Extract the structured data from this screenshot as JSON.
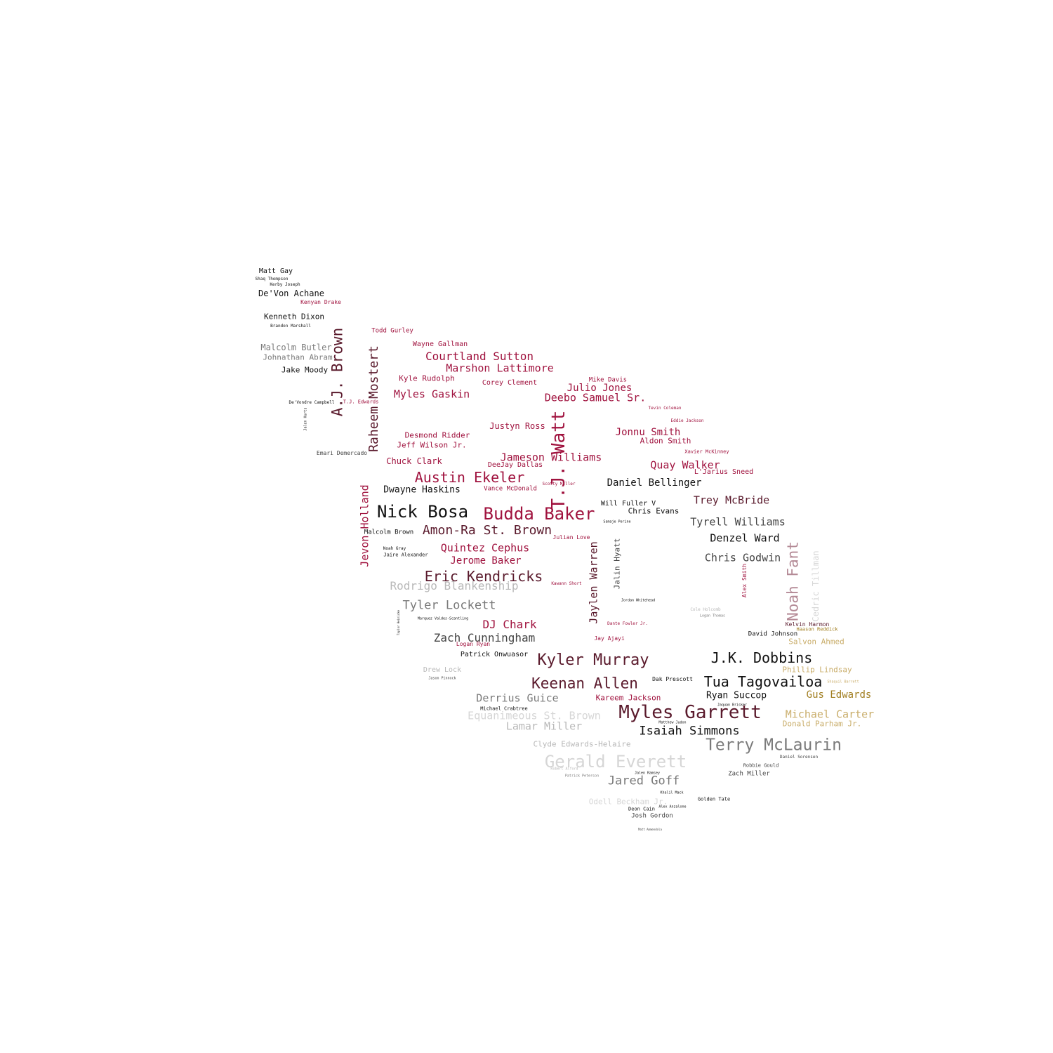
{
  "palette": {
    "crimson": "#a0123e",
    "maroon": "#5a1a2c",
    "black": "#111111",
    "dark_gray": "#444444",
    "gray": "#7a7a7a",
    "light_gray": "#b8b8b8",
    "pale_gray": "#d6d6d6",
    "mauve": "#b48a96",
    "gold": "#a07d1e",
    "tan": "#c9ad6a"
  },
  "words": [
    {
      "text": "Matt Gay",
      "size": 10,
      "color": "black"
    },
    {
      "text": "Shaq Thompson",
      "size": 6,
      "color": "black"
    },
    {
      "text": "Kerby Joseph",
      "size": 6,
      "color": "black"
    },
    {
      "text": "De'Von Achane",
      "size": 12,
      "color": "black"
    },
    {
      "text": "Kenyan Drake",
      "size": 8,
      "color": "crimson"
    },
    {
      "text": "Kenneth Dixon",
      "size": 11,
      "color": "black"
    },
    {
      "text": "Brandon Marshall",
      "size": 6,
      "color": "black"
    },
    {
      "text": "Malcolm Butler",
      "size": 12,
      "color": "gray"
    },
    {
      "text": "Johnathan Abram",
      "size": 11,
      "color": "gray"
    },
    {
      "text": "Jake Moody",
      "size": 11,
      "color": "black"
    },
    {
      "text": "A.J. Brown",
      "size": 21,
      "color": "maroon",
      "vertical": true
    },
    {
      "text": "Raheem Mostert",
      "size": 18,
      "color": "maroon",
      "vertical": true
    },
    {
      "text": "Todd Gurley",
      "size": 9,
      "color": "crimson"
    },
    {
      "text": "Wayne Gallman",
      "size": 10,
      "color": "crimson"
    },
    {
      "text": "Courtland Sutton",
      "size": 16,
      "color": "crimson"
    },
    {
      "text": "Marshon Lattimore",
      "size": 15,
      "color": "crimson"
    },
    {
      "text": "Kyle Rudolph",
      "size": 11,
      "color": "crimson"
    },
    {
      "text": "Corey Clement",
      "size": 10,
      "color": "crimson"
    },
    {
      "text": "Myles Gaskin",
      "size": 15,
      "color": "crimson"
    },
    {
      "text": "Mike Davis",
      "size": 9,
      "color": "crimson"
    },
    {
      "text": "Julio Jones",
      "size": 14,
      "color": "crimson"
    },
    {
      "text": "Deebo Samuel Sr.",
      "size": 15,
      "color": "crimson"
    },
    {
      "text": "De'Vondre Campbell",
      "size": 6,
      "color": "black"
    },
    {
      "text": "T.J. Edwards",
      "size": 7,
      "color": "crimson"
    },
    {
      "text": "Jalen Hurts",
      "size": 5,
      "color": "black",
      "vertical": true
    },
    {
      "text": "Tevin Coleman",
      "size": 6,
      "color": "crimson"
    },
    {
      "text": "Eddie Jackson",
      "size": 6,
      "color": "crimson"
    },
    {
      "text": "Justyn Ross",
      "size": 12,
      "color": "crimson"
    },
    {
      "text": "Jonnu Smith",
      "size": 14,
      "color": "crimson"
    },
    {
      "text": "Desmond Ridder",
      "size": 11,
      "color": "crimson"
    },
    {
      "text": "Jeff Wilson Jr.",
      "size": 11,
      "color": "crimson"
    },
    {
      "text": "Aldon Smith",
      "size": 11,
      "color": "crimson"
    },
    {
      "text": "T.J. Watt",
      "size": 26,
      "color": "crimson",
      "vertical": true
    },
    {
      "text": "Emari Demercado",
      "size": 8,
      "color": "dark_gray"
    },
    {
      "text": "Chuck Clark",
      "size": 12,
      "color": "crimson"
    },
    {
      "text": "Jameson Williams",
      "size": 15,
      "color": "crimson"
    },
    {
      "text": "Xavier McKinney",
      "size": 7,
      "color": "crimson"
    },
    {
      "text": "DeeJay Dallas",
      "size": 10,
      "color": "crimson"
    },
    {
      "text": "Quay Walker",
      "size": 15,
      "color": "crimson"
    },
    {
      "text": "L'Jarius Sneed",
      "size": 10,
      "color": "crimson"
    },
    {
      "text": "Austin Ekeler",
      "size": 20,
      "color": "crimson"
    },
    {
      "text": "Dwayne Haskins",
      "size": 13,
      "color": "black"
    },
    {
      "text": "Vance McDonald",
      "size": 9,
      "color": "crimson"
    },
    {
      "text": "Scotty Miller",
      "size": 6,
      "color": "crimson"
    },
    {
      "text": "Daniel Bellinger",
      "size": 14,
      "color": "black"
    },
    {
      "text": "Jevon Holland",
      "size": 15,
      "color": "crimson",
      "vertical": true
    },
    {
      "text": "Nick Bosa",
      "size": 24,
      "color": "black"
    },
    {
      "text": "Budda Baker",
      "size": 24,
      "color": "crimson"
    },
    {
      "text": "Will Fuller V",
      "size": 10,
      "color": "black"
    },
    {
      "text": "Chris Evans",
      "size": 11,
      "color": "black"
    },
    {
      "text": "Trey McBride",
      "size": 15,
      "color": "maroon"
    },
    {
      "text": "Malcolm Brown",
      "size": 9,
      "color": "black"
    },
    {
      "text": "Amon-Ra St. Brown",
      "size": 18,
      "color": "maroon"
    },
    {
      "text": "Samaje Perine",
      "size": 5,
      "color": "black"
    },
    {
      "text": "Tyrell Williams",
      "size": 15,
      "color": "dark_gray"
    },
    {
      "text": "Julian Love",
      "size": 8,
      "color": "crimson"
    },
    {
      "text": "Noah Gray",
      "size": 6,
      "color": "black"
    },
    {
      "text": "Jaire Alexander",
      "size": 7,
      "color": "black"
    },
    {
      "text": "Quintez Cephus",
      "size": 15,
      "color": "crimson"
    },
    {
      "text": "Jerome Baker",
      "size": 14,
      "color": "crimson"
    },
    {
      "text": "Jaylen Warren",
      "size": 15,
      "color": "maroon",
      "vertical": true
    },
    {
      "text": "Jalin Hyatt",
      "size": 11,
      "color": "dark_gray",
      "vertical": true
    },
    {
      "text": "Denzel Ward",
      "size": 15,
      "color": "black"
    },
    {
      "text": "Chris Godwin",
      "size": 15,
      "color": "dark_gray"
    },
    {
      "text": "Alex Smith",
      "size": 8,
      "color": "crimson",
      "vertical": true
    },
    {
      "text": "Noah Fant",
      "size": 21,
      "color": "mauve",
      "vertical": true
    },
    {
      "text": "Cedric Tillman",
      "size": 12,
      "color": "pale_gray",
      "vertical": true
    },
    {
      "text": "Eric Kendricks",
      "size": 20,
      "color": "maroon"
    },
    {
      "text": "Kawann Short",
      "size": 6,
      "color": "crimson"
    },
    {
      "text": "Rodrigo Blankenship",
      "size": 16,
      "color": "light_gray"
    },
    {
      "text": "Jordan Whitehead",
      "size": 5,
      "color": "black"
    },
    {
      "text": "Tyler Lockett",
      "size": 17,
      "color": "gray"
    },
    {
      "text": "Cole Holcomb",
      "size": 6,
      "color": "light_gray"
    },
    {
      "text": "Logan Thomas",
      "size": 5,
      "color": "gray"
    },
    {
      "text": "Marquez Valdes-Scantling",
      "size": 5,
      "color": "black"
    },
    {
      "text": "Taylor Heinicke",
      "size": 4,
      "color": "black",
      "vertical": true
    },
    {
      "text": "DJ Chark",
      "size": 16,
      "color": "crimson"
    },
    {
      "text": "Dante Fowler Jr.",
      "size": 6,
      "color": "crimson"
    },
    {
      "text": "Kelvin Harmon",
      "size": 8,
      "color": "maroon"
    },
    {
      "text": "Haason Reddick",
      "size": 7,
      "color": "gold"
    },
    {
      "text": "David Johnson",
      "size": 9,
      "color": "black"
    },
    {
      "text": "Salvon Ahmed",
      "size": 11,
      "color": "tan"
    },
    {
      "text": "Zach Cunningham",
      "size": 16,
      "color": "dark_gray"
    },
    {
      "text": "Logan Ryan",
      "size": 8,
      "color": "crimson"
    },
    {
      "text": "Jay Ajayi",
      "size": 8,
      "color": "crimson"
    },
    {
      "text": "Patrick Onwuasor",
      "size": 10,
      "color": "black"
    },
    {
      "text": "Kyler Murray",
      "size": 22,
      "color": "maroon"
    },
    {
      "text": "J.K. Dobbins",
      "size": 20,
      "color": "black"
    },
    {
      "text": "Drew Lock",
      "size": 10,
      "color": "light_gray"
    },
    {
      "text": "Jason Pinnock",
      "size": 5,
      "color": "dark_gray"
    },
    {
      "text": "Phillip Lindsay",
      "size": 11,
      "color": "tan"
    },
    {
      "text": "Keenan Allen",
      "size": 21,
      "color": "maroon"
    },
    {
      "text": "Dak Prescott",
      "size": 8,
      "color": "black"
    },
    {
      "text": "Tua Tagovailoa",
      "size": 20,
      "color": "black"
    },
    {
      "text": "Shaquil Barrett",
      "size": 5,
      "color": "tan"
    },
    {
      "text": "Derrius Guice",
      "size": 15,
      "color": "gray"
    },
    {
      "text": "Kareem Jackson",
      "size": 11,
      "color": "crimson"
    },
    {
      "text": "Ryan Succop",
      "size": 13,
      "color": "black"
    },
    {
      "text": "Gus Edwards",
      "size": 14,
      "color": "gold"
    },
    {
      "text": "Michael Crabtree",
      "size": 7,
      "color": "black"
    },
    {
      "text": "Jaquan Brisker",
      "size": 5,
      "color": "black"
    },
    {
      "text": "Myles Garrett",
      "size": 26,
      "color": "maroon"
    },
    {
      "text": "Michael Carter",
      "size": 15,
      "color": "tan"
    },
    {
      "text": "Equanimeous St. Brown",
      "size": 15,
      "color": "pale_gray"
    },
    {
      "text": "Donald Parham Jr.",
      "size": 11,
      "color": "tan"
    },
    {
      "text": "Lamar Miller",
      "size": 15,
      "color": "light_gray"
    },
    {
      "text": "Matthew Judon",
      "size": 5,
      "color": "black"
    },
    {
      "text": "Isaiah Simmons",
      "size": 17,
      "color": "black"
    },
    {
      "text": "Clyde Edwards-Helaire",
      "size": 11,
      "color": "light_gray"
    },
    {
      "text": "Terry McLaurin",
      "size": 23,
      "color": "gray"
    },
    {
      "text": "Daniel Sorensen",
      "size": 6,
      "color": "dark_gray"
    },
    {
      "text": "Gerald Everett",
      "size": 24,
      "color": "pale_gray"
    },
    {
      "text": "Robbie Gould",
      "size": 7,
      "color": "dark_gray"
    },
    {
      "text": "Robert Alford",
      "size": 5,
      "color": "light_gray"
    },
    {
      "text": "Zach Miller",
      "size": 9,
      "color": "dark_gray"
    },
    {
      "text": "Patrick Peterson",
      "size": 5,
      "color": "gray"
    },
    {
      "text": "Jared Goff",
      "size": 17,
      "color": "gray"
    },
    {
      "text": "Jalen Ramsey",
      "size": 5,
      "color": "black"
    },
    {
      "text": "Khalil Mack",
      "size": 5,
      "color": "black"
    },
    {
      "text": "Odell Beckham Jr.",
      "size": 11,
      "color": "pale_gray"
    },
    {
      "text": "Golden Tate",
      "size": 7,
      "color": "black"
    },
    {
      "text": "Alex Anzalone",
      "size": 5,
      "color": "black"
    },
    {
      "text": "Deon Cain",
      "size": 7,
      "color": "black"
    },
    {
      "text": "Josh Gordon",
      "size": 9,
      "color": "dark_gray"
    },
    {
      "text": "Matt Ammendola",
      "size": 4,
      "color": "dark_gray"
    }
  ]
}
